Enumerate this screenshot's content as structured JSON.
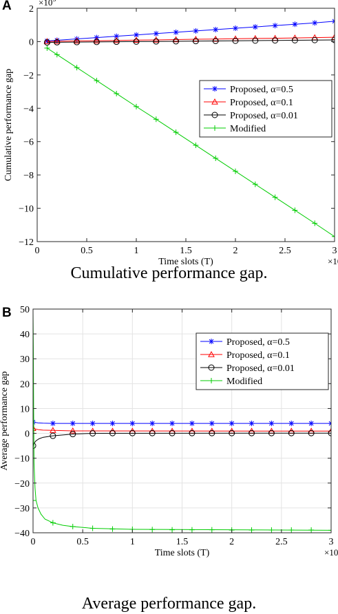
{
  "panels": [
    {
      "letter": "A",
      "caption": "Cumulative performance gap.",
      "chart_data": {
        "type": "line",
        "title": "",
        "xlabel": "Time slots (T)",
        "ylabel": "Cumulative performance gap",
        "x_multiplier": "×10",
        "x_multiplier_exp": "4",
        "y_multiplier": "×10",
        "y_multiplier_exp": "5",
        "xlim": [
          0,
          3
        ],
        "ylim": [
          -12,
          2
        ],
        "xticks": [
          0,
          0.5,
          1,
          1.5,
          2,
          2.5,
          3
        ],
        "yticks": [
          -12,
          -10,
          -8,
          -6,
          -4,
          -2,
          0,
          2
        ],
        "grid": false,
        "legend_position": "top-right",
        "series": [
          {
            "name": "Proposed, α=0.5",
            "color": "#0000ff",
            "marker": "star",
            "x": [
              0.1,
              0.2,
              0.4,
              0.6,
              0.8,
              1.0,
              1.2,
              1.4,
              1.6,
              1.8,
              2.0,
              2.2,
              2.4,
              2.6,
              2.8,
              3.0
            ],
            "y": [
              0.04,
              0.08,
              0.16,
              0.24,
              0.32,
              0.4,
              0.48,
              0.56,
              0.64,
              0.72,
              0.8,
              0.88,
              0.96,
              1.04,
              1.12,
              1.22
            ]
          },
          {
            "name": "Proposed, α=0.1",
            "color": "#ff0000",
            "marker": "triangle",
            "x": [
              0.1,
              0.2,
              0.4,
              0.6,
              0.8,
              1.0,
              1.2,
              1.4,
              1.6,
              1.8,
              2.0,
              2.2,
              2.4,
              2.6,
              2.8,
              3.0
            ],
            "y": [
              0.01,
              0.02,
              0.04,
              0.05,
              0.07,
              0.09,
              0.1,
              0.12,
              0.14,
              0.15,
              0.17,
              0.19,
              0.2,
              0.22,
              0.24,
              0.26
            ]
          },
          {
            "name": "Proposed, α=0.01",
            "color": "#000000",
            "marker": "circle",
            "x": [
              0.1,
              0.2,
              0.4,
              0.6,
              0.8,
              1.0,
              1.2,
              1.4,
              1.6,
              1.8,
              2.0,
              2.2,
              2.4,
              2.6,
              2.8,
              3.0
            ],
            "y": [
              -0.05,
              -0.04,
              -0.03,
              -0.02,
              -0.01,
              0.0,
              0.01,
              0.02,
              0.03,
              0.04,
              0.05,
              0.06,
              0.07,
              0.08,
              0.09,
              0.1
            ]
          },
          {
            "name": "Modified",
            "color": "#00cc00",
            "marker": "plus",
            "x": [
              0.1,
              0.2,
              0.4,
              0.6,
              0.8,
              1.0,
              1.2,
              1.4,
              1.6,
              1.8,
              2.0,
              2.2,
              2.4,
              2.6,
              2.8,
              3.0
            ],
            "y": [
              -0.39,
              -0.78,
              -1.56,
              -2.34,
              -3.12,
              -3.9,
              -4.66,
              -5.44,
              -6.22,
              -7.0,
              -7.78,
              -8.56,
              -9.34,
              -10.12,
              -10.9,
              -11.7
            ]
          }
        ]
      }
    },
    {
      "letter": "B",
      "caption": "Average performance gap.",
      "chart_data": {
        "type": "line",
        "title": "",
        "xlabel": "Time slots (T)",
        "ylabel": "Average performance gap",
        "x_multiplier": "×10",
        "x_multiplier_exp": "4",
        "y_multiplier": "",
        "y_multiplier_exp": "",
        "xlim": [
          0,
          3
        ],
        "ylim": [
          -40,
          50
        ],
        "xticks": [
          0,
          0.5,
          1,
          1.5,
          2,
          2.5,
          3
        ],
        "yticks": [
          -40,
          -30,
          -20,
          -10,
          0,
          10,
          20,
          30,
          40,
          50
        ],
        "grid": true,
        "legend_position": "top-right",
        "series": [
          {
            "name": "Proposed, α=0.5",
            "color": "#0000ff",
            "marker": "star",
            "x": [
              0.0,
              0.2,
              0.4,
              0.6,
              0.8,
              1.0,
              1.2,
              1.4,
              1.6,
              1.8,
              2.0,
              2.2,
              2.4,
              2.6,
              2.8,
              3.0
            ],
            "y": [
              4.5,
              4.0,
              4.0,
              4.0,
              4.0,
              4.0,
              4.0,
              4.0,
              4.0,
              4.0,
              4.0,
              4.0,
              4.0,
              4.0,
              4.0,
              4.0
            ],
            "line_x": [
              0.0,
              0.02,
              0.05,
              0.1,
              0.2,
              3.0
            ],
            "line_y": [
              4.8,
              4.4,
              4.2,
              4.1,
              4.0,
              4.0
            ]
          },
          {
            "name": "Proposed, α=0.1",
            "color": "#ff0000",
            "marker": "triangle",
            "x": [
              0.0,
              0.2,
              0.4,
              0.6,
              0.8,
              1.0,
              1.2,
              1.4,
              1.6,
              1.8,
              2.0,
              2.2,
              2.4,
              2.6,
              2.8,
              3.0
            ],
            "y": [
              2.0,
              1.2,
              1.0,
              0.9,
              0.9,
              0.9,
              0.9,
              0.9,
              0.9,
              0.9,
              0.9,
              0.9,
              0.9,
              0.9,
              0.9,
              0.9
            ],
            "line_x": [
              0.0,
              0.02,
              0.05,
              0.1,
              0.2,
              0.4,
              3.0
            ],
            "line_y": [
              2.0,
              1.8,
              1.5,
              1.3,
              1.2,
              1.0,
              0.9
            ]
          },
          {
            "name": "Proposed, α=0.01",
            "color": "#000000",
            "marker": "circle",
            "x": [
              0.0,
              0.2,
              0.4,
              0.6,
              0.8,
              1.0,
              1.2,
              1.4,
              1.6,
              1.8,
              2.0,
              2.2,
              2.4,
              2.6,
              2.8,
              3.0
            ],
            "y": [
              -5.0,
              -1.0,
              -0.3,
              0.0,
              0.1,
              0.1,
              0.1,
              0.1,
              0.1,
              0.1,
              0.1,
              0.1,
              0.1,
              0.1,
              0.1,
              0.1
            ],
            "line_x": [
              0.0,
              0.01,
              0.03,
              0.06,
              0.1,
              0.2,
              0.4,
              0.6,
              3.0
            ],
            "line_y": [
              -5.0,
              -4.0,
              -3.0,
              -2.2,
              -1.6,
              -1.0,
              -0.3,
              0.0,
              0.1
            ]
          },
          {
            "name": "Modified",
            "color": "#00cc00",
            "marker": "plus",
            "x": [
              0.0,
              0.2,
              0.4,
              0.6,
              0.8,
              1.0,
              1.2,
              1.4,
              1.6,
              1.8,
              2.0,
              2.2,
              2.4,
              2.6,
              2.8,
              3.0
            ],
            "y": [
              -27.0,
              -36.0,
              -37.5,
              -38.2,
              -38.5,
              -38.6,
              -38.7,
              -38.8,
              -38.8,
              -38.8,
              -38.9,
              -38.9,
              -38.9,
              -38.9,
              -38.9,
              -39.0
            ],
            "line_x": [
              0.0,
              0.003,
              0.006,
              0.01,
              0.02,
              0.03,
              0.05,
              0.08,
              0.12,
              0.2,
              0.3,
              0.4,
              0.6,
              1.0,
              3.0
            ],
            "line_y": [
              49.0,
              35.0,
              10.0,
              -12.0,
              -22.0,
              -27.0,
              -30.0,
              -32.5,
              -34.5,
              -36.0,
              -37.0,
              -37.5,
              -38.2,
              -38.6,
              -39.0
            ]
          }
        ]
      }
    }
  ]
}
